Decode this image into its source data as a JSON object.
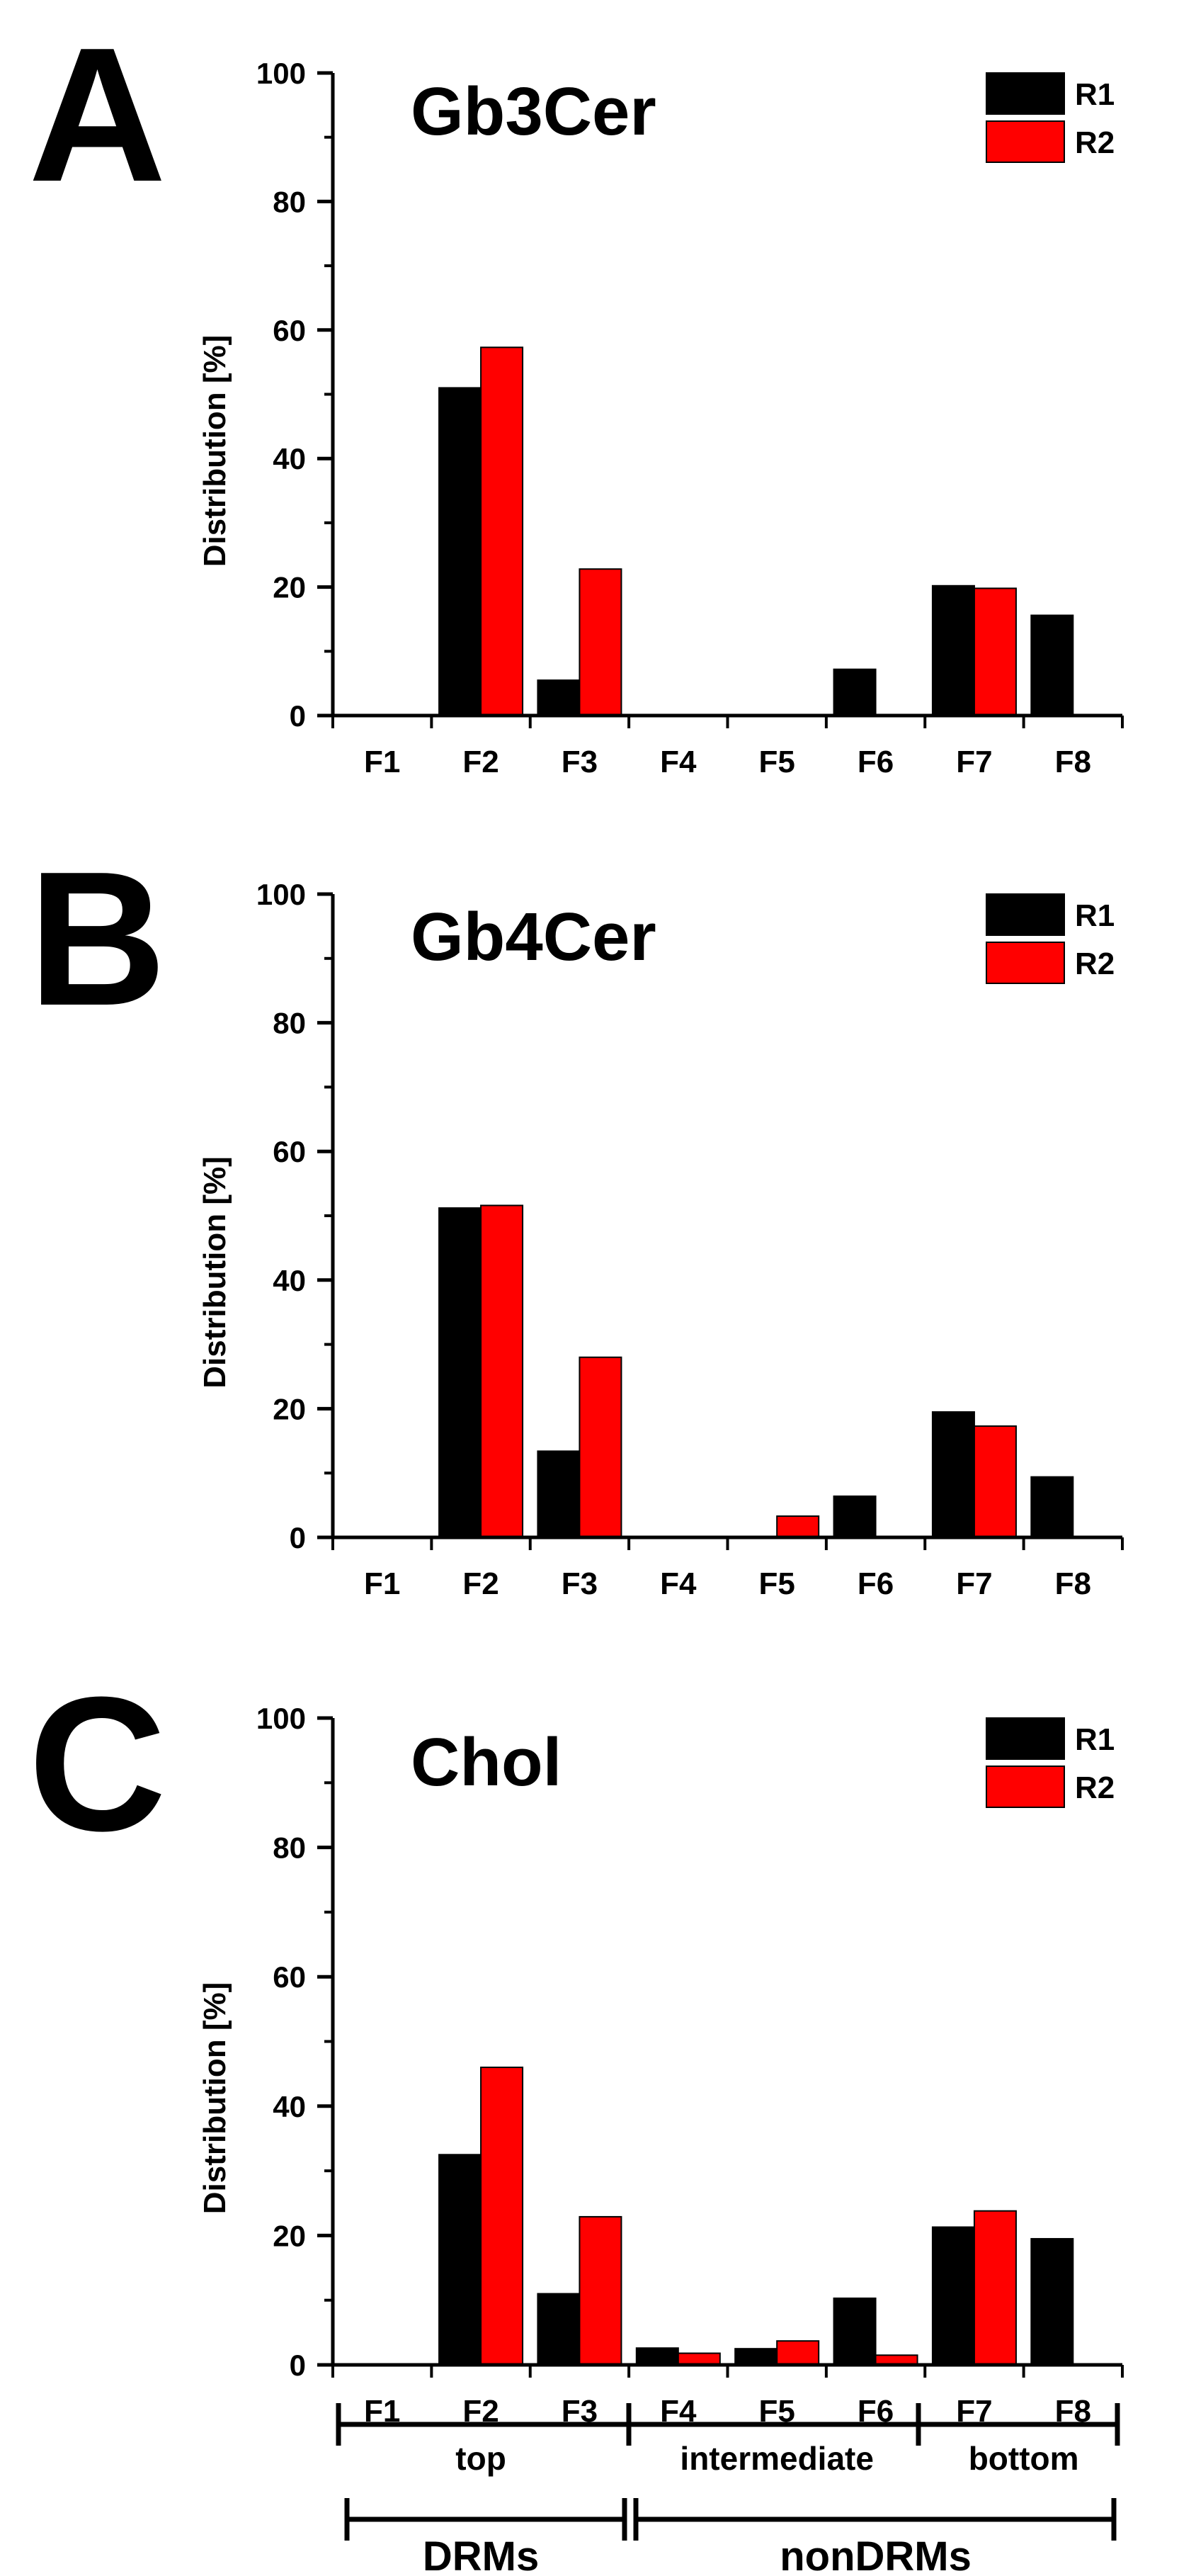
{
  "chart_data": [
    {
      "type": "bar",
      "panel": "A",
      "title": "Gb3Cer",
      "xlabel": "",
      "ylabel": "Distribution [%]",
      "ylim": [
        0,
        100
      ],
      "yticks": [
        0,
        20,
        40,
        60,
        80,
        100
      ],
      "categories": [
        "F1",
        "F2",
        "F3",
        "F4",
        "F5",
        "F6",
        "F7",
        "F8"
      ],
      "series": [
        {
          "name": "R1",
          "color": "#000000",
          "values": [
            0,
            51,
            5.5,
            0,
            0,
            7.2,
            20.2,
            15.6
          ]
        },
        {
          "name": "R2",
          "color": "#ff0000",
          "values": [
            0,
            57.3,
            22.8,
            0,
            0,
            0,
            19.8,
            0
          ]
        }
      ],
      "legend": "top-right"
    },
    {
      "type": "bar",
      "panel": "B",
      "title": "Gb4Cer",
      "xlabel": "",
      "ylabel": "Distribution [%]",
      "ylim": [
        0,
        100
      ],
      "yticks": [
        0,
        20,
        40,
        60,
        80,
        100
      ],
      "categories": [
        "F1",
        "F2",
        "F3",
        "F4",
        "F5",
        "F6",
        "F7",
        "F8"
      ],
      "series": [
        {
          "name": "R1",
          "color": "#000000",
          "values": [
            0,
            51.2,
            13.4,
            0,
            0,
            6.4,
            19.5,
            9.4
          ]
        },
        {
          "name": "R2",
          "color": "#ff0000",
          "values": [
            0,
            51.6,
            28,
            0,
            3.3,
            0,
            17.3,
            0
          ]
        }
      ],
      "legend": "top-right"
    },
    {
      "type": "bar",
      "panel": "C",
      "title": "Chol",
      "xlabel": "",
      "ylabel": "Distribution [%]",
      "ylim": [
        0,
        100
      ],
      "yticks": [
        0,
        20,
        40,
        60,
        80,
        100
      ],
      "categories": [
        "F1",
        "F2",
        "F3",
        "F4",
        "F5",
        "F6",
        "F7",
        "F8"
      ],
      "series": [
        {
          "name": "R1",
          "color": "#000000",
          "values": [
            0,
            32.5,
            11,
            2.6,
            2.5,
            10.3,
            21.3,
            19.5
          ]
        },
        {
          "name": "R2",
          "color": "#ff0000",
          "values": [
            0,
            46,
            22.9,
            1.8,
            3.7,
            1.5,
            23.8,
            0
          ]
        }
      ],
      "legend": "top-right"
    }
  ],
  "fraction_groups": {
    "top_row": [
      {
        "label": "top",
        "from": "F1",
        "to": "F3"
      },
      {
        "label": "intermediate",
        "from": "F4",
        "to": "F6"
      },
      {
        "label": "bottom",
        "from": "F7",
        "to": "F8"
      }
    ],
    "bottom_row": [
      {
        "label": "DRMs",
        "from": "F1",
        "to": "F3"
      },
      {
        "label": "nonDRMs",
        "from": "F4",
        "to": "F8"
      }
    ]
  }
}
